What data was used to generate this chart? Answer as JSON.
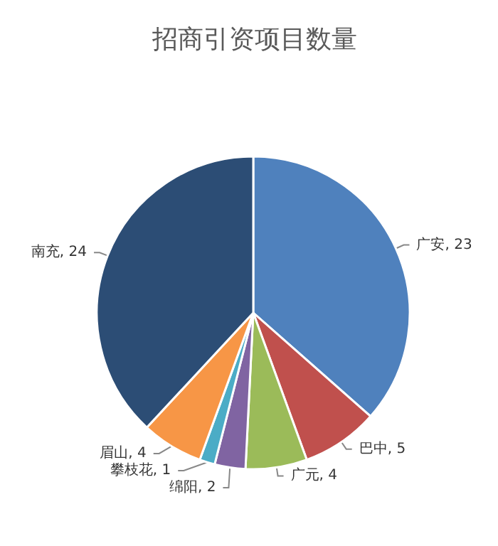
{
  "chart_data": {
    "type": "pie",
    "title": "招商引资项目数量",
    "categories": [
      "广安",
      "巴中",
      "广元",
      "绵阳",
      "攀枝花",
      "眉山",
      "南充"
    ],
    "values": [
      23,
      5,
      4,
      2,
      1,
      4,
      24
    ],
    "colors": [
      "#4f81bd",
      "#c0504d",
      "#9bbb59",
      "#8064a2",
      "#4bacc6",
      "#f79646",
      "#2c4d75"
    ],
    "value_labels": [
      ", 23",
      ", 5",
      ", 4",
      ", 2",
      ", 1",
      ", 4",
      ", 24"
    ],
    "legend": false
  }
}
